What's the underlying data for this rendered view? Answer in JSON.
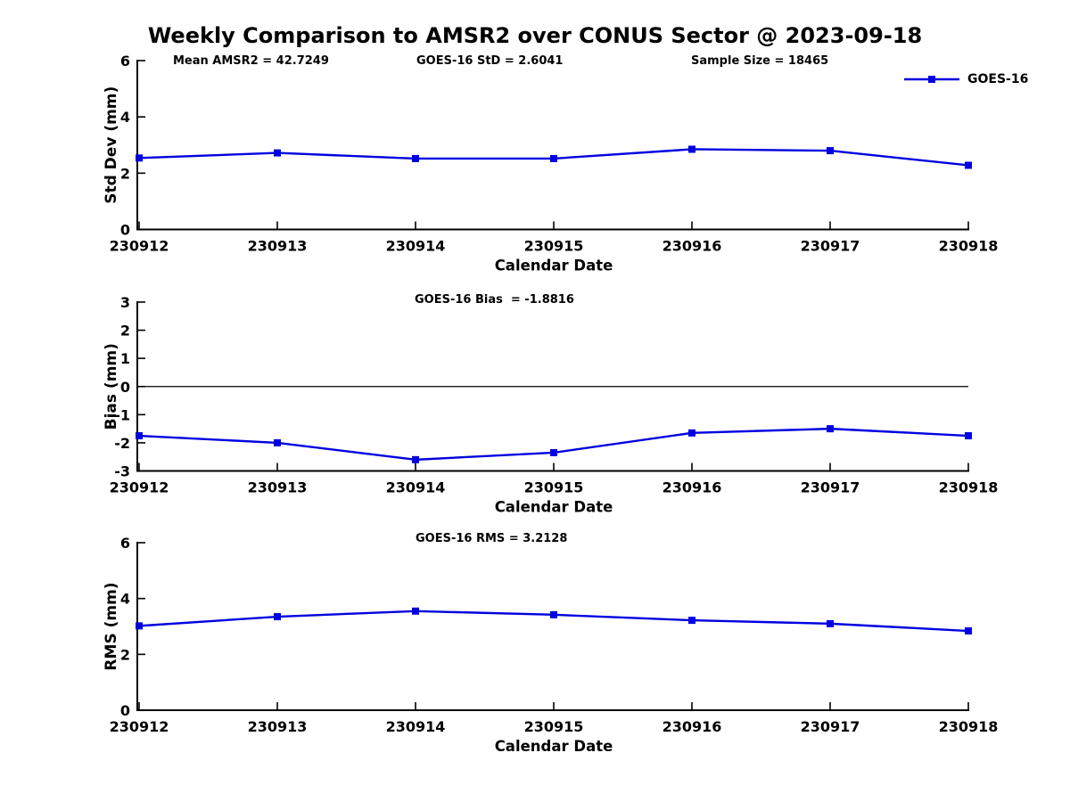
{
  "title": "Weekly Comparison to AMSR2 over CONUS Sector @ 2023-09-18",
  "colors": {
    "line": "#0000E0",
    "axis": "#000000",
    "text": "#000000",
    "background": "#FFFFFF"
  },
  "chart_data": [
    {
      "type": "line",
      "marker": "square",
      "categories": [
        "230912",
        "230913",
        "230914",
        "230915",
        "230916",
        "230917",
        "230918"
      ],
      "series": [
        {
          "name": "GOES-16",
          "values": [
            2.54,
            2.72,
            2.52,
            2.52,
            2.85,
            2.8,
            2.28
          ]
        }
      ],
      "xlabel": "Calendar Date",
      "ylabel": "Std Dev (mm)",
      "ylim": [
        0,
        6
      ],
      "yticks": [
        0,
        2,
        4,
        6
      ],
      "grid": false,
      "legend_position": "upper right",
      "annotations": [
        "Mean AMSR2 = 42.7249",
        "GOES-16 StD = 2.6041",
        "Sample Size = 18465"
      ]
    },
    {
      "type": "line",
      "marker": "square",
      "categories": [
        "230912",
        "230913",
        "230914",
        "230915",
        "230916",
        "230917",
        "230918"
      ],
      "series": [
        {
          "name": "GOES-16",
          "values": [
            -1.75,
            -2.0,
            -2.6,
            -2.35,
            -1.65,
            -1.5,
            -1.75
          ]
        }
      ],
      "xlabel": "Calendar Date",
      "ylabel": "Bias (mm)",
      "ylim": [
        -3,
        3
      ],
      "yticks": [
        -3,
        -2,
        -1,
        0,
        1,
        2,
        3
      ],
      "zero_line": true,
      "grid": false,
      "annotations": [
        "GOES-16 Bias  = -1.8816"
      ]
    },
    {
      "type": "line",
      "marker": "square",
      "categories": [
        "230912",
        "230913",
        "230914",
        "230915",
        "230916",
        "230917",
        "230918"
      ],
      "series": [
        {
          "name": "GOES-16",
          "values": [
            3.02,
            3.35,
            3.55,
            3.42,
            3.22,
            3.1,
            2.84
          ]
        }
      ],
      "xlabel": "Calendar Date",
      "ylabel": "RMS (mm)",
      "ylim": [
        0,
        6
      ],
      "yticks": [
        0,
        2,
        4,
        6
      ],
      "grid": false,
      "annotations": [
        "GOES-16 RMS = 3.2128"
      ]
    }
  ]
}
